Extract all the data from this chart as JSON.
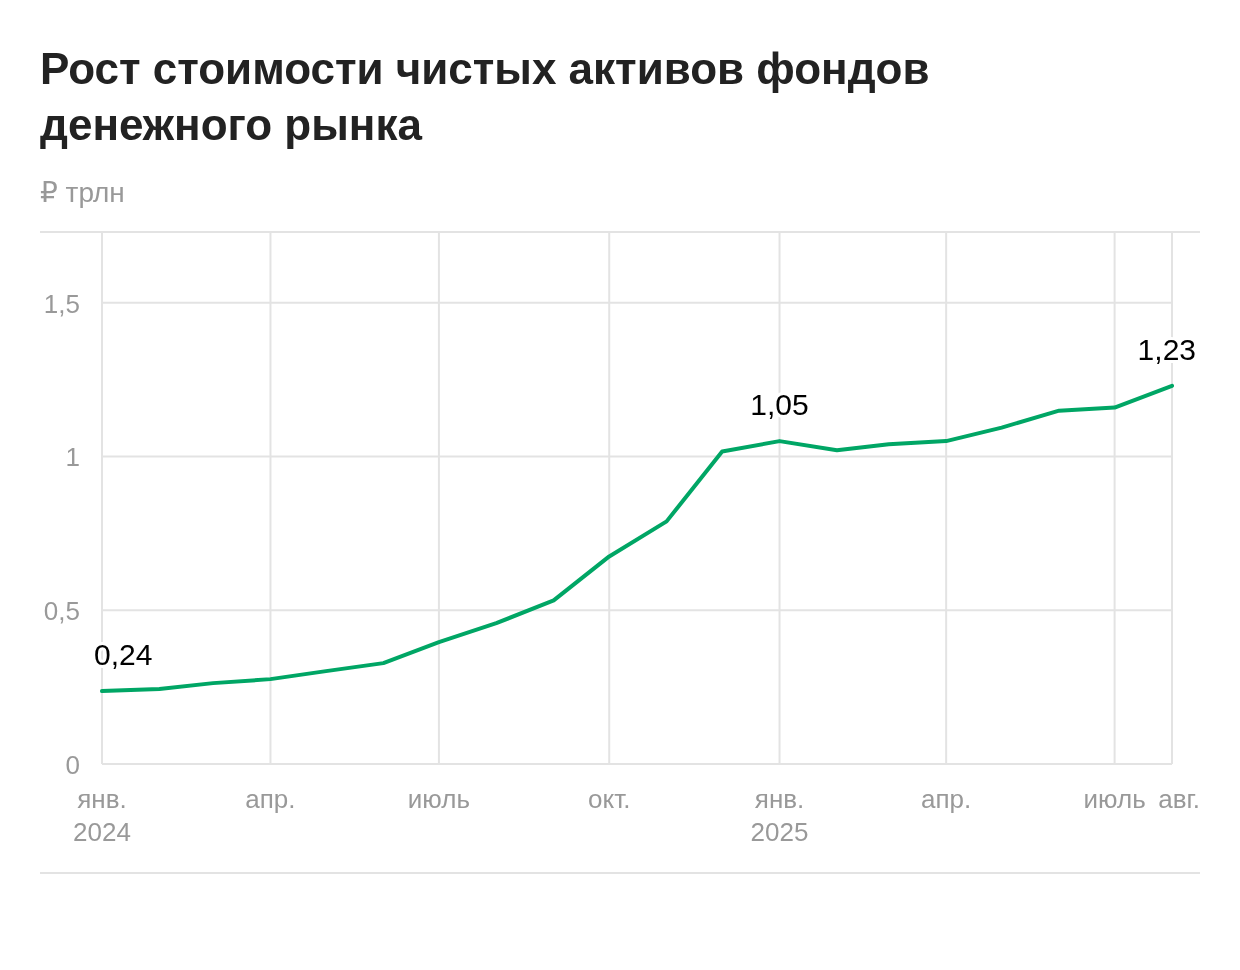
{
  "chart_data": {
    "type": "line",
    "title": "Рост стоимости чистых активов фондов денежного рынка",
    "ylabel": "₽ трлн",
    "x": [
      "2024-01",
      "2024-02",
      "2024-03",
      "2024-04",
      "2024-05",
      "2024-06",
      "2024-07",
      "2024-08",
      "2024-09",
      "2024-10",
      "2024-11",
      "2024-12",
      "2025-01",
      "2025-02",
      "2025-03",
      "2025-04",
      "2025-05",
      "2025-06",
      "2025-07",
      "2025-08"
    ],
    "series": [
      {
        "color": "#00a665",
        "values": [
          0.237,
          0.244,
          0.263,
          0.276,
          0.302,
          0.328,
          0.396,
          0.458,
          0.532,
          0.675,
          0.789,
          1.016,
          1.05,
          1.02,
          1.04,
          1.05,
          1.094,
          1.149,
          1.159,
          1.23
        ],
        "value_labels": [
          "0,24",
          null,
          null,
          null,
          null,
          null,
          null,
          null,
          null,
          null,
          null,
          null,
          "1,05",
          null,
          null,
          null,
          null,
          null,
          null,
          "1,23"
        ]
      }
    ],
    "xlim": [
      "2024-01",
      "2025-08"
    ],
    "xticks": [
      {
        "value": "2024-01",
        "label": "янв.\n2024"
      },
      {
        "value": "2024-04",
        "label": "апр."
      },
      {
        "value": "2024-07",
        "label": "июль"
      },
      {
        "value": "2024-10",
        "label": "окт."
      },
      {
        "value": "2025-01",
        "label": "янв.\n2025"
      },
      {
        "value": "2025-04",
        "label": "апр."
      },
      {
        "value": "2025-07",
        "label": "июль"
      },
      {
        "value": "2025-08",
        "label": "авг."
      }
    ],
    "ylim": [
      0,
      1.73
    ],
    "yticks": [
      {
        "value": 0,
        "label": "0"
      },
      {
        "value": 0.5,
        "label": "0,5"
      },
      {
        "value": 1,
        "label": "1"
      },
      {
        "value": 1.5,
        "label": "1,5"
      }
    ],
    "grid": true,
    "marker": "none",
    "line_style": "solid"
  }
}
